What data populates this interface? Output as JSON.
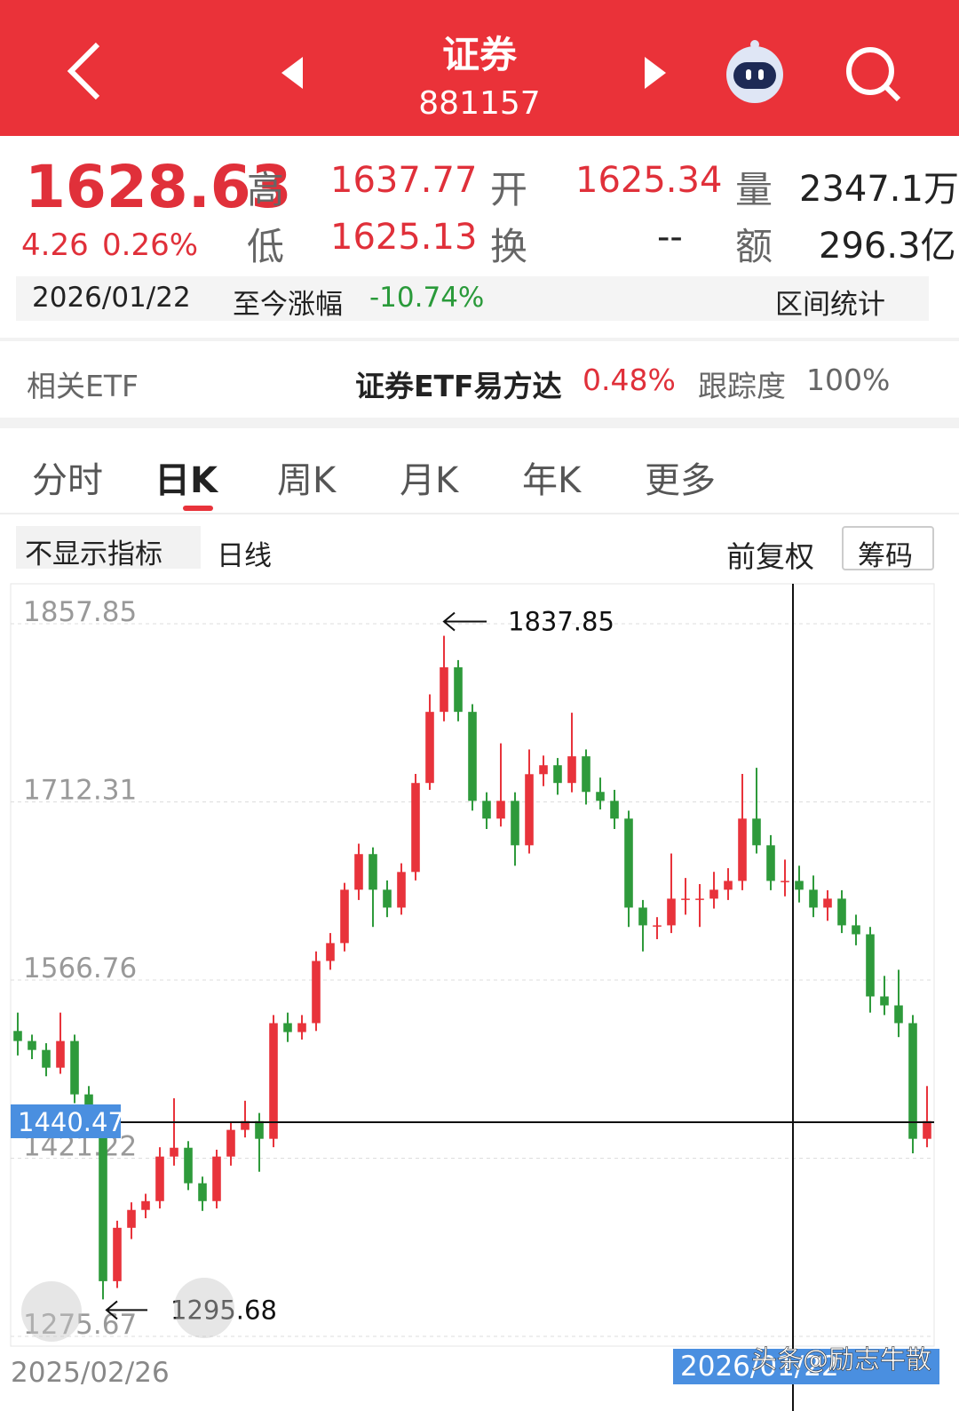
{
  "header": {
    "title": "证券",
    "code": "881157"
  },
  "quote": {
    "price": "1628.63",
    "change": "4.26",
    "change_pct": "0.26%",
    "high_label": "高",
    "high": "1637.77",
    "open_label": "开",
    "open": "1625.34",
    "volume_label": "量",
    "volume": "2347.1万",
    "low_label": "低",
    "low": "1625.13",
    "turnover_label": "换",
    "turnover": "--",
    "amount_label": "额",
    "amount": "296.3亿"
  },
  "range_bar": {
    "date": "2026/01/22",
    "label": "至今涨幅",
    "value": "-10.74%",
    "link": "区间统计"
  },
  "etf": {
    "label": "相关ETF",
    "name": "证券ETF易方达",
    "pct": "0.48%",
    "track_label": "跟踪度",
    "track": "100%"
  },
  "tabs": [
    "分时",
    "日K",
    "周K",
    "月K",
    "年K",
    "更多"
  ],
  "toolbar": {
    "indicator": "不显示指标",
    "period": "日线",
    "adjust": "前复权",
    "chips": "筹码"
  },
  "chart_data": {
    "type": "candlestick",
    "ylim": [
      1275.67,
      1857.85
    ],
    "yticks": [
      1857.85,
      1712.31,
      1566.76,
      1421.22,
      1275.67
    ],
    "grid": true,
    "x_labels": [
      "2025/02/26",
      "2026/01/22"
    ],
    "high_marker": 1837.85,
    "low_marker": 1295.68,
    "crosshair_value": 1440.47,
    "up_color": "#e8333b",
    "down_color": "#2e9a3b",
    "values": [
      [
        1515,
        1530,
        1495,
        1506.8
      ],
      [
        1506.8,
        1512,
        1492,
        1499.5
      ],
      [
        1499.5,
        1505,
        1478,
        1485.0
      ],
      [
        1485.0,
        1530,
        1480,
        1506.8
      ],
      [
        1506.8,
        1512,
        1456,
        1463.2
      ],
      [
        1463.2,
        1470,
        1440,
        1448.7
      ],
      [
        1448.7,
        1452,
        1295.68,
        1310.6
      ],
      [
        1310.6,
        1360,
        1305,
        1354.2
      ],
      [
        1354.2,
        1375,
        1345,
        1368.8
      ],
      [
        1368.8,
        1382,
        1362,
        1376.0
      ],
      [
        1376.0,
        1420,
        1370,
        1412.4
      ],
      [
        1412.4,
        1460,
        1405,
        1419.6
      ],
      [
        1419.6,
        1425,
        1385,
        1390.6
      ],
      [
        1390.6,
        1396,
        1368,
        1376.0
      ],
      [
        1376.0,
        1418,
        1370,
        1412.4
      ],
      [
        1412.4,
        1440,
        1405,
        1434.2
      ],
      [
        1434.2,
        1458,
        1428,
        1441.4
      ],
      [
        1441.4,
        1448,
        1400,
        1426.9
      ],
      [
        1426.9,
        1528,
        1420,
        1521.4
      ],
      [
        1521.4,
        1530,
        1506,
        1514.1
      ],
      [
        1514.1,
        1528,
        1508,
        1521.4
      ],
      [
        1521.4,
        1580,
        1515,
        1572.2
      ],
      [
        1572.2,
        1595,
        1565,
        1586.8
      ],
      [
        1586.8,
        1636,
        1580,
        1630.4
      ],
      [
        1630.4,
        1668,
        1622,
        1659.5
      ],
      [
        1659.5,
        1665,
        1600,
        1630.4
      ],
      [
        1630.4,
        1638,
        1608,
        1615.8
      ],
      [
        1615.8,
        1652,
        1610,
        1644.9
      ],
      [
        1644.9,
        1725,
        1638,
        1717.6
      ],
      [
        1717.6,
        1790,
        1712,
        1775.7
      ],
      [
        1775.7,
        1837.85,
        1768,
        1812.1
      ],
      [
        1812.1,
        1818,
        1768,
        1775.7
      ],
      [
        1775.7,
        1782,
        1695,
        1703.0
      ],
      [
        1703.0,
        1710,
        1680,
        1688.5
      ],
      [
        1688.5,
        1750,
        1682,
        1703.0
      ],
      [
        1703.0,
        1710,
        1650,
        1666.7
      ],
      [
        1666.7,
        1745,
        1660,
        1724.8
      ],
      [
        1724.8,
        1740,
        1715,
        1732.1
      ],
      [
        1732.1,
        1738,
        1708,
        1717.6
      ],
      [
        1717.6,
        1775,
        1710,
        1739.4
      ],
      [
        1739.4,
        1745,
        1700,
        1710.3
      ],
      [
        1710.3,
        1722,
        1696,
        1703.0
      ],
      [
        1703.0,
        1712,
        1680,
        1688.5
      ],
      [
        1688.5,
        1695,
        1600,
        1615.8
      ],
      [
        1615.8,
        1622,
        1580,
        1601.3
      ],
      [
        1601.3,
        1608,
        1590,
        1601.3
      ],
      [
        1601.3,
        1660,
        1595,
        1623.1
      ],
      [
        1623.1,
        1640,
        1610,
        1623.1
      ],
      [
        1623.1,
        1635,
        1600,
        1623.1
      ],
      [
        1623.1,
        1645,
        1615,
        1630.4
      ],
      [
        1630.4,
        1648,
        1622,
        1637.6
      ],
      [
        1637.6,
        1725,
        1630,
        1688.5
      ],
      [
        1688.5,
        1730,
        1660,
        1666.7
      ],
      [
        1666.7,
        1675,
        1630,
        1637.6
      ],
      [
        1637.6,
        1655,
        1625,
        1637.6
      ],
      [
        1637.6,
        1650,
        1620,
        1630.4
      ],
      [
        1630.4,
        1642,
        1608,
        1615.8
      ],
      [
        1615.8,
        1630,
        1605,
        1623.1
      ],
      [
        1623.1,
        1630,
        1595,
        1601.3
      ],
      [
        1601.3,
        1610,
        1585,
        1594.0
      ],
      [
        1594.0,
        1600,
        1530,
        1543.2
      ],
      [
        1543.2,
        1560,
        1528,
        1535.9
      ],
      [
        1535.9,
        1565,
        1510,
        1521.4
      ],
      [
        1521.4,
        1528,
        1415,
        1426.9
      ],
      [
        1426.9,
        1470,
        1420,
        1441.4
      ]
    ]
  },
  "watermark": "头条@励志牛散"
}
